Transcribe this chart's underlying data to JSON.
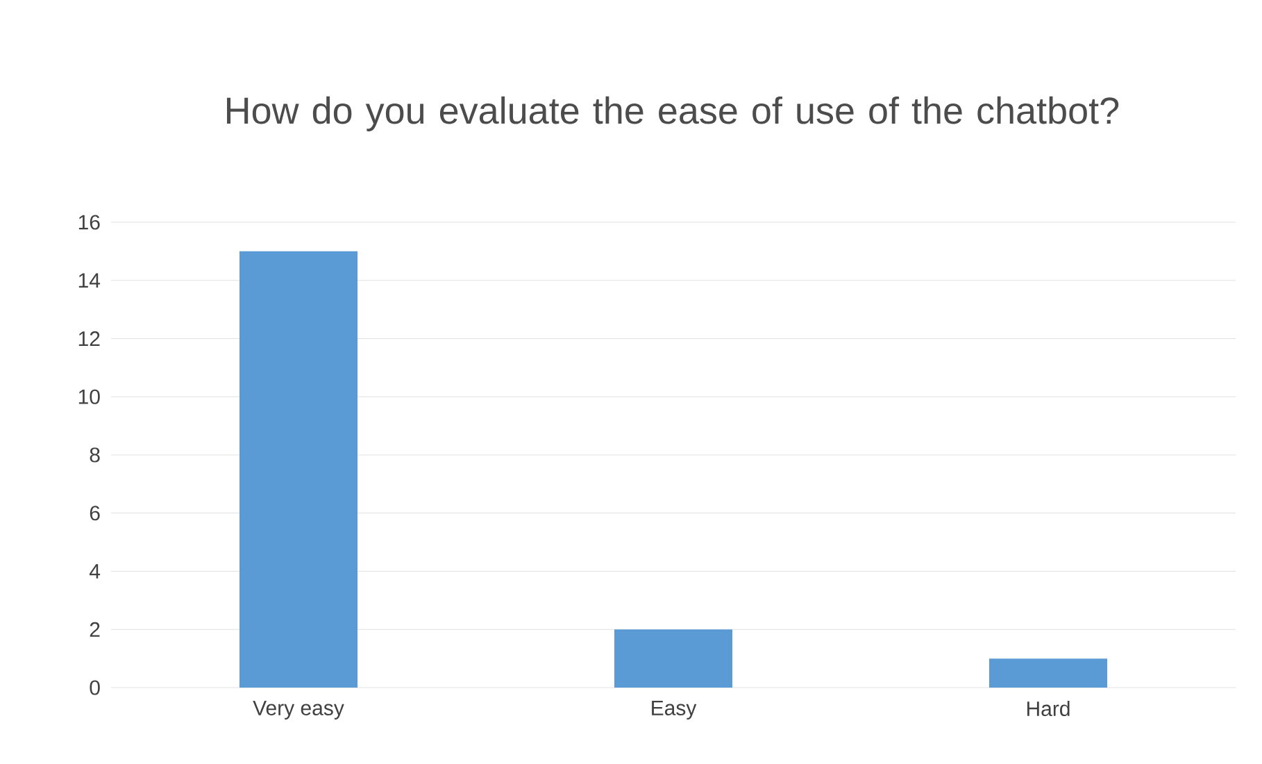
{
  "chart_data": {
    "type": "bar",
    "title": "How do you evaluate the ease of use of the chatbot?",
    "categories": [
      "Very easy",
      "Easy",
      "Hard"
    ],
    "values": [
      15,
      2,
      1
    ],
    "color": "#5b9bd5",
    "ylim": [
      0,
      16
    ],
    "yticks": [
      0,
      2,
      4,
      6,
      8,
      10,
      12,
      14,
      16
    ],
    "grid": "y"
  }
}
